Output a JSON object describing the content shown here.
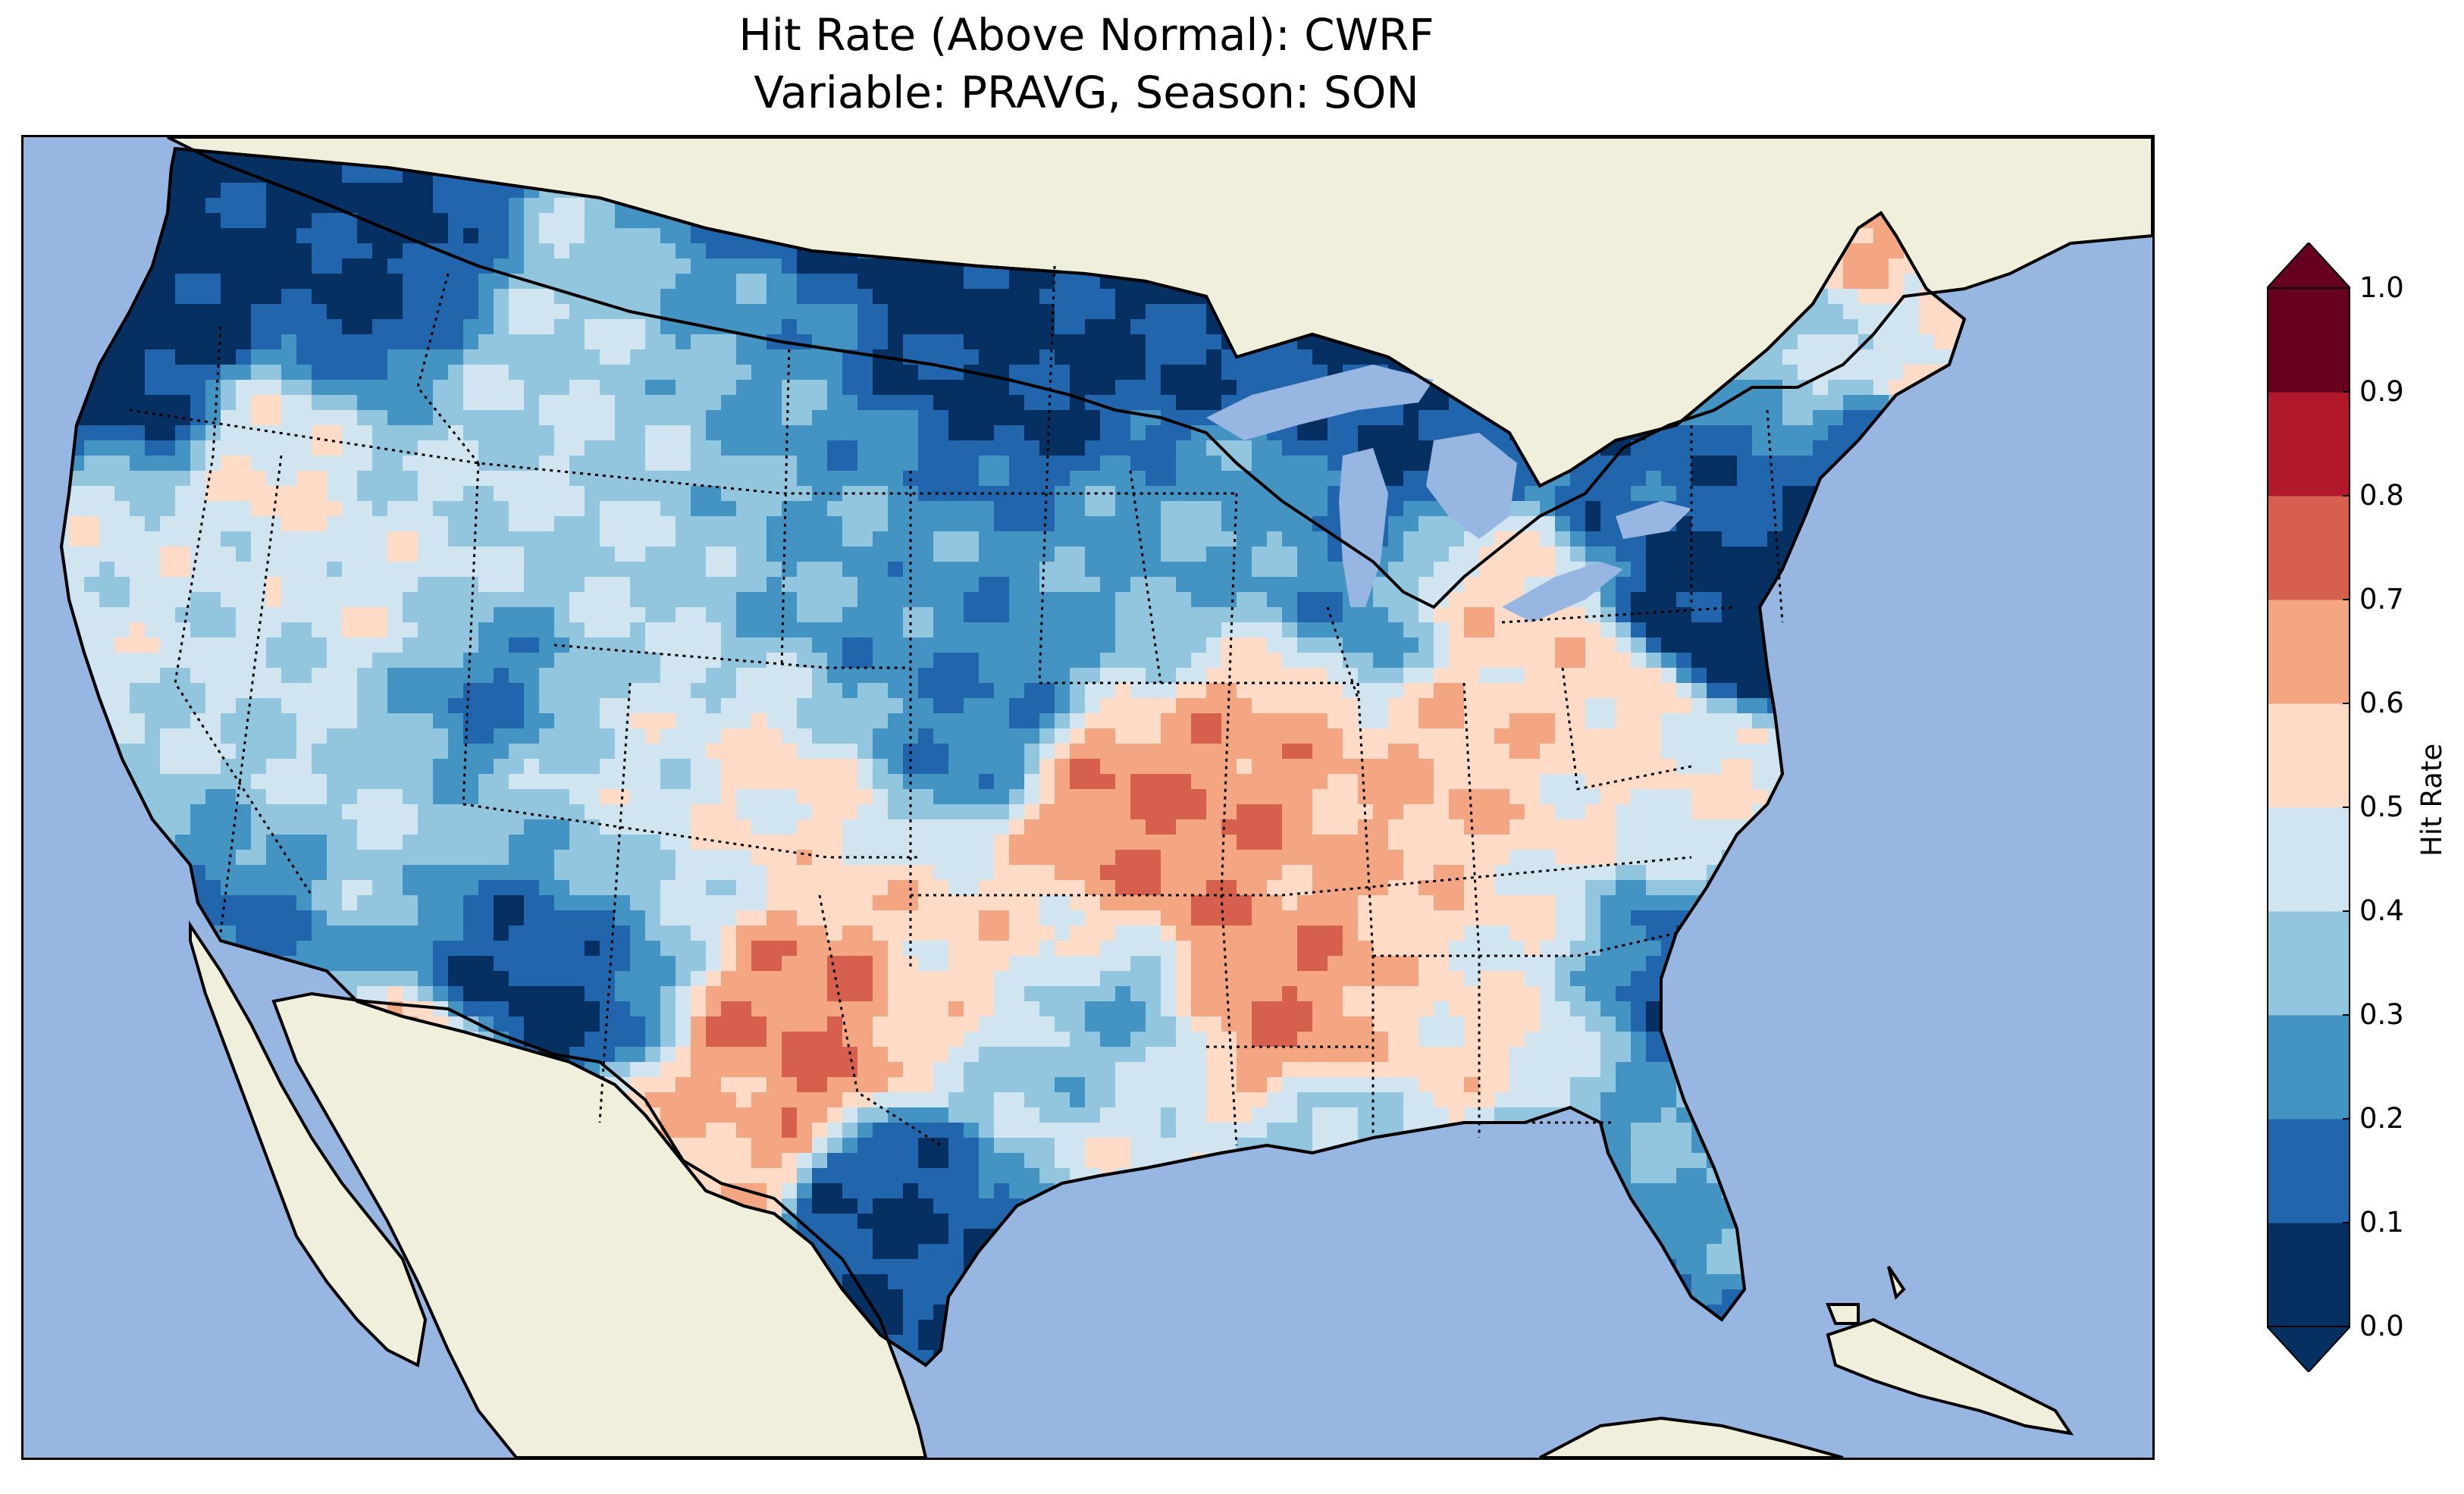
{
  "title_line1": "Hit Rate (Above Normal): CWRF",
  "title_line2": "Variable: PRAVG, Season: SON",
  "colorbar": {
    "label": "Hit Rate",
    "ticks": [
      "0.0",
      "0.1",
      "0.2",
      "0.3",
      "0.4",
      "0.5",
      "0.6",
      "0.7",
      "0.8",
      "0.9",
      "1.0"
    ],
    "colors": [
      "#053061",
      "#2166ac",
      "#4393c3",
      "#92c5de",
      "#d1e5f0",
      "#fddbc7",
      "#f4a582",
      "#d6604d",
      "#b2182b",
      "#67001f"
    ],
    "under_color": "#053061",
    "over_color": "#67001f"
  },
  "map": {
    "ocean_color": "#97b6e1",
    "land_color": "#efefdb",
    "lake_color": "#97b6e1"
  }
}
